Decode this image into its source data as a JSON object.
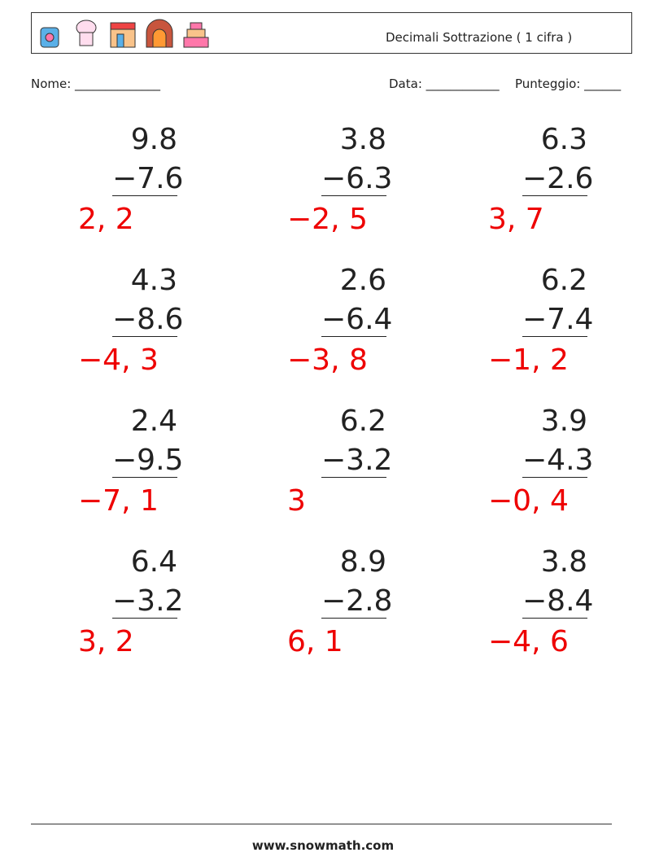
{
  "header": {
    "title": "Decimali Sottrazione ( 1 cifra )"
  },
  "fields": {
    "name": "Nome: ______________",
    "date": "Data: ____________",
    "score": "Punteggio: ______"
  },
  "problems": [
    {
      "top": "9.8",
      "bottom": "−7.6",
      "answer": "2, 2"
    },
    {
      "top": "3.8",
      "bottom": "−6.3",
      "answer": "−2, 5"
    },
    {
      "top": "6.3",
      "bottom": "−2.6",
      "answer": "3, 7"
    },
    {
      "top": "4.3",
      "bottom": "−8.6",
      "answer": "−4, 3"
    },
    {
      "top": "2.6",
      "bottom": "−6.4",
      "answer": "−3, 8"
    },
    {
      "top": "6.2",
      "bottom": "−7.4",
      "answer": "−1, 2"
    },
    {
      "top": "2.4",
      "bottom": "−9.5",
      "answer": "−7, 1"
    },
    {
      "top": "6.2",
      "bottom": "−3.2",
      "answer": "3"
    },
    {
      "top": "3.9",
      "bottom": "−4.3",
      "answer": "−0, 4"
    },
    {
      "top": "6.4",
      "bottom": "−3.2",
      "answer": "3, 2"
    },
    {
      "top": "8.9",
      "bottom": "−2.8",
      "answer": "6, 1"
    },
    {
      "top": "3.8",
      "bottom": "−8.4",
      "answer": "−4, 6"
    }
  ],
  "footer": {
    "site": "www.snowmath.com"
  }
}
